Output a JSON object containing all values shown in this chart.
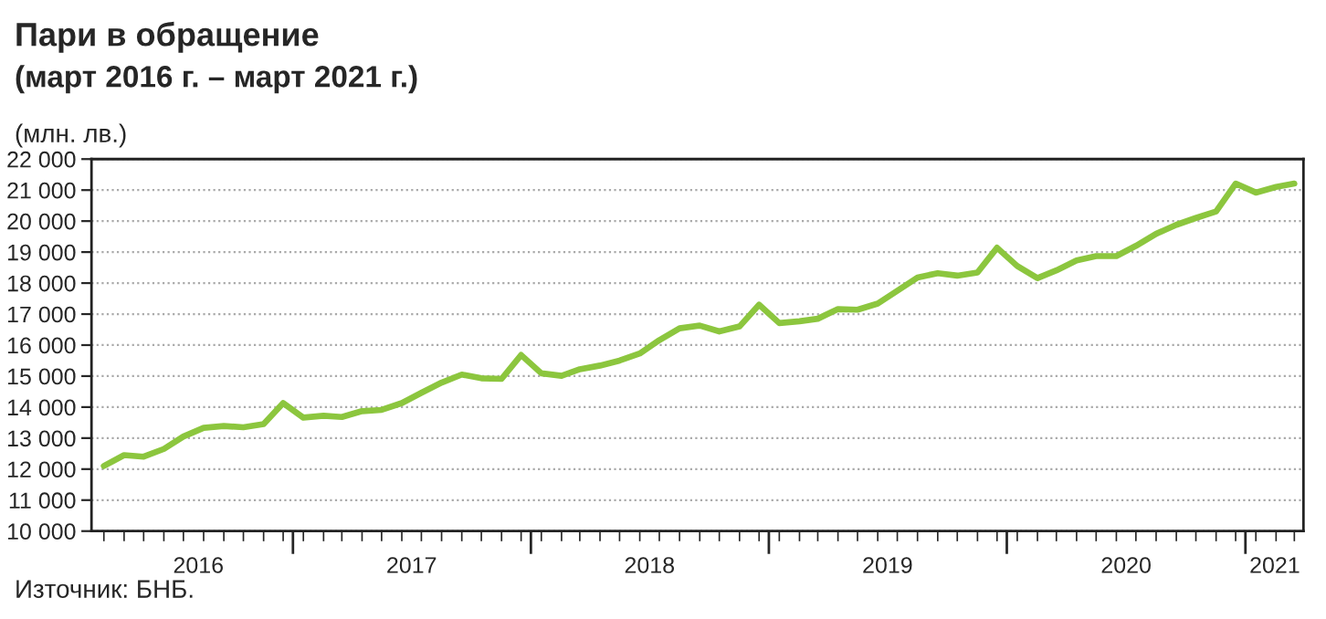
{
  "chart_data": {
    "type": "line",
    "title": "Пари в обращение",
    "subtitle": "(март 2016 г. – март 2021 г.)",
    "ylabel": "(млн. лв.)",
    "annotations": [
      "Източник: БНБ."
    ],
    "x": [
      "2016-03",
      "2016-04",
      "2016-05",
      "2016-06",
      "2016-07",
      "2016-08",
      "2016-09",
      "2016-10",
      "2016-11",
      "2016-12",
      "2017-01",
      "2017-02",
      "2017-03",
      "2017-04",
      "2017-05",
      "2017-06",
      "2017-07",
      "2017-08",
      "2017-09",
      "2017-10",
      "2017-11",
      "2017-12",
      "2018-01",
      "2018-02",
      "2018-03",
      "2018-04",
      "2018-05",
      "2018-06",
      "2018-07",
      "2018-08",
      "2018-09",
      "2018-10",
      "2018-11",
      "2018-12",
      "2019-01",
      "2019-02",
      "2019-03",
      "2019-04",
      "2019-05",
      "2019-06",
      "2019-07",
      "2019-08",
      "2019-09",
      "2019-10",
      "2019-11",
      "2019-12",
      "2020-01",
      "2020-02",
      "2020-03",
      "2020-04",
      "2020-05",
      "2020-06",
      "2020-07",
      "2020-08",
      "2020-09",
      "2020-10",
      "2020-11",
      "2020-12",
      "2021-01",
      "2021-02",
      "2021-03"
    ],
    "series": [
      {
        "color": "#8cc63e",
        "values": [
          12100,
          12450,
          12400,
          12650,
          13050,
          13330,
          13390,
          13350,
          13450,
          14130,
          13660,
          13720,
          13680,
          13870,
          13910,
          14130,
          14460,
          14790,
          15050,
          14930,
          14910,
          15680,
          15090,
          15010,
          15220,
          15340,
          15500,
          15730,
          16160,
          16540,
          16630,
          16440,
          16600,
          17300,
          16710,
          16770,
          16850,
          17160,
          17140,
          17340,
          17750,
          18180,
          18320,
          18240,
          18340,
          19140,
          18550,
          18160,
          18410,
          18730,
          18870,
          18870,
          19200,
          19590,
          19880,
          20100,
          20310,
          21210,
          20920,
          21100,
          21210
        ]
      }
    ],
    "xlim": [
      "2016-02-11",
      "2021-03-15"
    ],
    "xticks": [
      {
        "value": "2016-07-24",
        "label": "2016"
      },
      {
        "value": "2016-12-16",
        "label": null
      },
      {
        "value": "2017-06-16",
        "label": "2017"
      },
      {
        "value": "2017-12-16",
        "label": null
      },
      {
        "value": "2018-06-16",
        "label": "2018"
      },
      {
        "value": "2018-12-16",
        "label": null
      },
      {
        "value": "2019-06-16",
        "label": "2019"
      },
      {
        "value": "2019-12-16",
        "label": null
      },
      {
        "value": "2020-06-16",
        "label": "2020"
      },
      {
        "value": "2020-12-16",
        "label": null
      },
      {
        "value": "2021-01-30",
        "label": "2021"
      }
    ],
    "ylim": [
      10000,
      22000
    ],
    "yticks": [
      {
        "value": 10000,
        "label": "10 000"
      },
      {
        "value": 11000,
        "label": "11 000"
      },
      {
        "value": 12000,
        "label": "12 000"
      },
      {
        "value": 13000,
        "label": "13 000"
      },
      {
        "value": 14000,
        "label": "14 000"
      },
      {
        "value": 15000,
        "label": "15 000"
      },
      {
        "value": 16000,
        "label": "16 000"
      },
      {
        "value": 17000,
        "label": "17 000"
      },
      {
        "value": 18000,
        "label": "18 000"
      },
      {
        "value": 19000,
        "label": "19 000"
      },
      {
        "value": 20000,
        "label": "20 000"
      },
      {
        "value": 21000,
        "label": "21 000"
      },
      {
        "value": 22000,
        "label": "22 000"
      }
    ],
    "grid": "y",
    "marker": "none",
    "line_style": "solid"
  }
}
